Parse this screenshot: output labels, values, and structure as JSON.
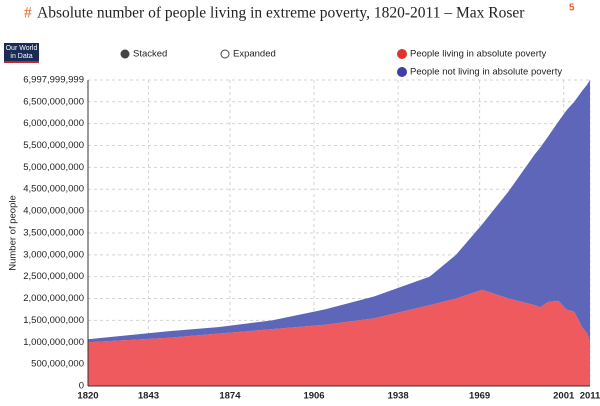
{
  "chart_data": {
    "type": "stacked-area",
    "hash": "#",
    "title": "Absolute number of people living in extreme poverty, 1820-2011 – Max Roser",
    "footnote": "5",
    "logo": [
      "Our World",
      "in Data"
    ],
    "controls": [
      "Stacked",
      "Expanded"
    ],
    "ylabel": "Number of people",
    "x": [
      1820,
      1850,
      1870,
      1890,
      1910,
      1929,
      1950,
      1960,
      1970,
      1980,
      1990,
      1992,
      1995,
      1999,
      2002,
      2005,
      2008,
      2010,
      2011
    ],
    "series": [
      {
        "name": "People living in absolute poverty",
        "color": "#ee5a5e",
        "legend_color": "#e0322c",
        "values": [
          1000000000,
          1100000000,
          1200000000,
          1300000000,
          1400000000,
          1550000000,
          1850000000,
          2000000000,
          2200000000,
          2000000000,
          1850000000,
          1800000000,
          1920000000,
          1950000000,
          1750000000,
          1700000000,
          1350000000,
          1200000000,
          1000000000
        ]
      },
      {
        "name": "People not living in absolute poverty",
        "color": "#5d66b8",
        "legend_color": "#3c3fa8",
        "values": [
          70000000,
          150000000,
          150000000,
          200000000,
          350000000,
          500000000,
          650000000,
          1000000000,
          1500000000,
          2450000000,
          3450000000,
          3650000000,
          3780000000,
          4100000000,
          4550000000,
          4800000000,
          5400000000,
          5700000000,
          6000000000
        ]
      }
    ],
    "xlim": [
      1820,
      2011
    ],
    "xticks": [
      1820,
      1843,
      1874,
      1906,
      1938,
      1969,
      2001,
      2011
    ],
    "ylim": [
      0,
      6997999999
    ],
    "yticks": [
      0,
      {
        "value": 500000000,
        "label": "500,000,000"
      },
      {
        "value": 1000000000,
        "label": "1,000,000,000"
      },
      {
        "value": 1500000000,
        "label": "1,500,000,000"
      },
      {
        "value": 2000000000,
        "label": "2,000,000,000"
      },
      {
        "value": 2500000000,
        "label": "2,500,000,000"
      },
      {
        "value": 3000000000,
        "label": "3,000,000,000"
      },
      {
        "value": 3500000000,
        "label": "3,500,000,000"
      },
      {
        "value": 4000000000,
        "label": "4,000,000,000"
      },
      {
        "value": 4500000000,
        "label": "4,500,000,000"
      },
      {
        "value": 5000000000,
        "label": "5,000,000,000"
      },
      {
        "value": 5500000000,
        "label": "5,500,000,000"
      },
      {
        "value": 6000000000,
        "label": "6,000,000,000"
      },
      {
        "value": 6500000000,
        "label": "6,500,000,000"
      },
      {
        "value": 6997999999,
        "label": "6,997,999,999"
      }
    ],
    "grid": true
  }
}
